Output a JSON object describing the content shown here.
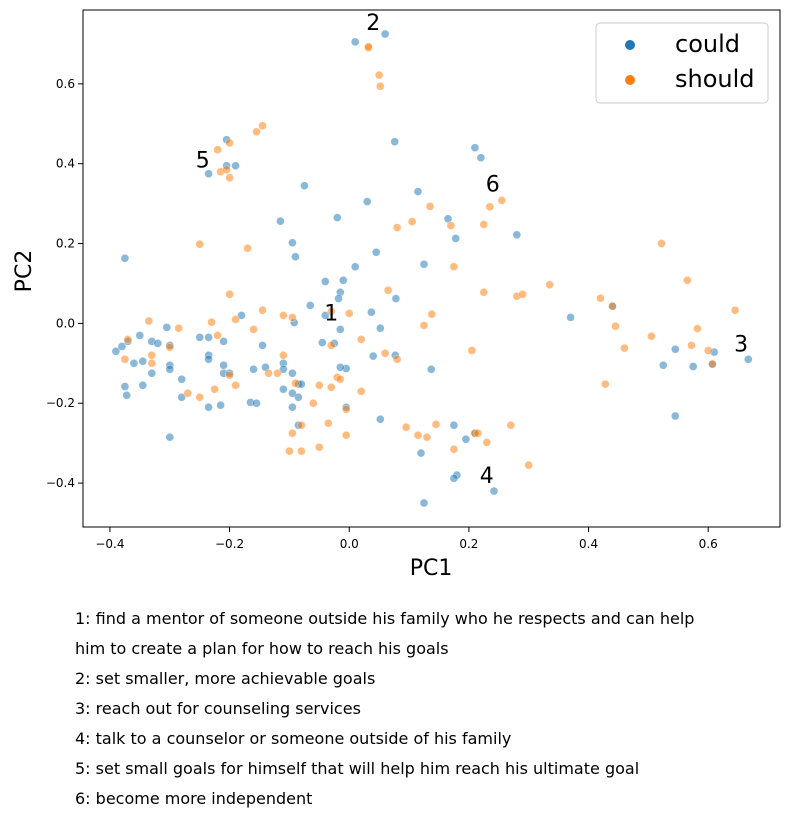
{
  "chart_data": {
    "type": "scatter",
    "xlabel": "PC1",
    "ylabel": "PC2",
    "xlim": [
      -0.445,
      0.72
    ],
    "ylim": [
      -0.51,
      0.785
    ],
    "xticks": [
      -0.4,
      -0.2,
      0.0,
      0.2,
      0.4,
      0.6
    ],
    "xtick_labels": [
      "−0.4",
      "−0.2",
      "0.0",
      "0.2",
      "0.4",
      "0.6"
    ],
    "yticks": [
      -0.4,
      -0.2,
      0.0,
      0.2,
      0.4,
      0.6
    ],
    "ytick_labels": [
      "−0.4",
      "−0.2",
      "0.0",
      "0.2",
      "0.4",
      "0.6"
    ],
    "grid": false,
    "legend_position": "top-right",
    "series": [
      {
        "name": "could",
        "color": "#1f77b4",
        "points": [
          [
            0.01,
            0.705
          ],
          [
            0.06,
            0.725
          ],
          [
            0.076,
            0.455
          ],
          [
            0.21,
            0.44
          ],
          [
            0.22,
            0.415
          ],
          [
            0.115,
            0.33
          ],
          [
            0.165,
            0.262
          ],
          [
            0.28,
            0.222
          ],
          [
            0.178,
            0.213
          ],
          [
            0.125,
            0.148
          ],
          [
            -0.075,
            0.345
          ],
          [
            0.03,
            0.305
          ],
          [
            -0.02,
            0.265
          ],
          [
            -0.115,
            0.256
          ],
          [
            -0.095,
            0.202
          ],
          [
            -0.09,
            0.167
          ],
          [
            0.045,
            0.178
          ],
          [
            0.01,
            0.142
          ],
          [
            -0.04,
            0.105
          ],
          [
            -0.01,
            0.108
          ],
          [
            -0.015,
            0.078
          ],
          [
            -0.018,
            0.062
          ],
          [
            -0.065,
            0.045
          ],
          [
            0.078,
            0.062
          ],
          [
            -0.092,
            0.002
          ],
          [
            -0.04,
            0.02
          ],
          [
            0.037,
            0.028
          ],
          [
            -0.015,
            -0.015
          ],
          [
            0.052,
            -0.012
          ],
          [
            -0.025,
            -0.05
          ],
          [
            -0.045,
            -0.048
          ],
          [
            0.04,
            -0.082
          ],
          [
            0.077,
            -0.08
          ],
          [
            0.137,
            -0.115
          ],
          [
            -0.005,
            -0.113
          ],
          [
            -0.015,
            -0.11
          ],
          [
            -0.005,
            -0.21
          ],
          [
            0.052,
            -0.24
          ],
          [
            -0.205,
            0.46
          ],
          [
            -0.205,
            0.395
          ],
          [
            -0.19,
            0.395
          ],
          [
            -0.235,
            0.375
          ],
          [
            -0.39,
            -0.07
          ],
          [
            -0.38,
            -0.058
          ],
          [
            -0.37,
            -0.045
          ],
          [
            -0.35,
            -0.03
          ],
          [
            -0.36,
            -0.1
          ],
          [
            -0.345,
            -0.095
          ],
          [
            -0.33,
            -0.045
          ],
          [
            -0.32,
            -0.05
          ],
          [
            -0.305,
            -0.01
          ],
          [
            -0.3,
            -0.055
          ],
          [
            -0.3,
            -0.105
          ],
          [
            -0.3,
            -0.115
          ],
          [
            -0.33,
            -0.125
          ],
          [
            -0.345,
            -0.155
          ],
          [
            -0.375,
            -0.158
          ],
          [
            -0.372,
            -0.18
          ],
          [
            -0.28,
            -0.14
          ],
          [
            -0.28,
            -0.185
          ],
          [
            -0.25,
            -0.035
          ],
          [
            -0.235,
            -0.08
          ],
          [
            -0.235,
            -0.09
          ],
          [
            -0.235,
            -0.035
          ],
          [
            -0.21,
            -0.045
          ],
          [
            -0.21,
            -0.105
          ],
          [
            -0.21,
            -0.125
          ],
          [
            -0.2,
            -0.125
          ],
          [
            -0.235,
            -0.21
          ],
          [
            -0.215,
            -0.205
          ],
          [
            -0.18,
            0.02
          ],
          [
            -0.16,
            -0.115
          ],
          [
            -0.145,
            -0.055
          ],
          [
            -0.14,
            -0.11
          ],
          [
            -0.11,
            -0.1
          ],
          [
            -0.11,
            -0.115
          ],
          [
            -0.11,
            -0.165
          ],
          [
            -0.095,
            -0.175
          ],
          [
            -0.095,
            -0.125
          ],
          [
            -0.095,
            -0.21
          ],
          [
            -0.085,
            -0.152
          ],
          [
            -0.08,
            -0.152
          ],
          [
            -0.085,
            -0.185
          ],
          [
            -0.085,
            -0.255
          ],
          [
            -0.165,
            -0.198
          ],
          [
            -0.155,
            -0.2
          ],
          [
            -0.3,
            -0.285
          ],
          [
            -0.375,
            0.163
          ],
          [
            0.12,
            -0.325
          ],
          [
            0.125,
            -0.45
          ],
          [
            0.175,
            -0.255
          ],
          [
            0.18,
            -0.38
          ],
          [
            0.175,
            -0.388
          ],
          [
            0.195,
            -0.29
          ],
          [
            0.21,
            -0.275
          ],
          [
            0.242,
            -0.42
          ],
          [
            0.37,
            0.015
          ],
          [
            0.525,
            -0.105
          ],
          [
            0.545,
            -0.065
          ],
          [
            0.545,
            -0.232
          ],
          [
            0.575,
            -0.108
          ],
          [
            0.61,
            -0.072
          ],
          [
            0.667,
            -0.09
          ],
          [
            0.44,
            0.043
          ],
          [
            0.607,
            -0.102
          ]
        ]
      },
      {
        "name": "should",
        "color": "#ff7f0e",
        "points": [
          [
            0.032,
            0.69
          ],
          [
            0.032,
            0.693
          ],
          [
            0.05,
            0.622
          ],
          [
            0.052,
            0.594
          ],
          [
            -0.155,
            0.48
          ],
          [
            -0.145,
            0.495
          ],
          [
            -0.22,
            0.435
          ],
          [
            -0.2,
            0.452
          ],
          [
            -0.215,
            0.38
          ],
          [
            -0.205,
            0.385
          ],
          [
            -0.2,
            0.365
          ],
          [
            -0.25,
            0.198
          ],
          [
            -0.17,
            0.188
          ],
          [
            -0.2,
            0.073
          ],
          [
            -0.145,
            0.033
          ],
          [
            -0.335,
            0.006
          ],
          [
            -0.285,
            -0.012
          ],
          [
            -0.37,
            -0.04
          ],
          [
            -0.33,
            -0.08
          ],
          [
            -0.33,
            -0.1
          ],
          [
            -0.375,
            -0.09
          ],
          [
            -0.3,
            -0.06
          ],
          [
            -0.23,
            0.003
          ],
          [
            -0.22,
            -0.03
          ],
          [
            -0.19,
            0.01
          ],
          [
            -0.16,
            -0.015
          ],
          [
            -0.11,
            0.02
          ],
          [
            -0.095,
            0.015
          ],
          [
            -0.2,
            -0.13
          ],
          [
            -0.19,
            -0.155
          ],
          [
            -0.225,
            -0.165
          ],
          [
            -0.27,
            -0.175
          ],
          [
            -0.25,
            -0.185
          ],
          [
            -0.135,
            -0.125
          ],
          [
            -0.12,
            -0.125
          ],
          [
            -0.11,
            -0.08
          ],
          [
            -0.09,
            -0.15
          ],
          [
            -0.03,
            -0.16
          ],
          [
            -0.05,
            -0.155
          ],
          [
            -0.06,
            -0.2
          ],
          [
            -0.08,
            -0.255
          ],
          [
            -0.095,
            -0.275
          ],
          [
            -0.1,
            -0.32
          ],
          [
            -0.08,
            -0.32
          ],
          [
            -0.05,
            -0.31
          ],
          [
            -0.035,
            -0.25
          ],
          [
            -0.005,
            -0.215
          ],
          [
            -0.005,
            -0.28
          ],
          [
            -0.02,
            -0.135
          ],
          [
            -0.015,
            -0.14
          ],
          [
            -0.03,
            0.03
          ],
          [
            0.0,
            0.025
          ],
          [
            -0.03,
            -0.055
          ],
          [
            0.02,
            -0.04
          ],
          [
            0.02,
            -0.17
          ],
          [
            0.06,
            -0.075
          ],
          [
            0.065,
            0.083
          ],
          [
            0.08,
            0.24
          ],
          [
            0.105,
            0.255
          ],
          [
            0.135,
            0.293
          ],
          [
            0.17,
            0.245
          ],
          [
            0.175,
            0.142
          ],
          [
            0.125,
            -0.005
          ],
          [
            0.138,
            0.023
          ],
          [
            0.08,
            -0.09
          ],
          [
            0.205,
            -0.068
          ],
          [
            0.225,
            0.078
          ],
          [
            0.225,
            0.248
          ],
          [
            0.235,
            0.292
          ],
          [
            0.255,
            0.308
          ],
          [
            0.28,
            0.068
          ],
          [
            0.29,
            0.073
          ],
          [
            0.335,
            0.097
          ],
          [
            0.095,
            -0.26
          ],
          [
            0.115,
            -0.28
          ],
          [
            0.13,
            -0.285
          ],
          [
            0.145,
            -0.253
          ],
          [
            0.175,
            -0.315
          ],
          [
            0.21,
            -0.275
          ],
          [
            0.215,
            -0.275
          ],
          [
            0.23,
            -0.298
          ],
          [
            0.27,
            -0.255
          ],
          [
            0.3,
            -0.355
          ],
          [
            0.42,
            0.063
          ],
          [
            0.44,
            0.043
          ],
          [
            0.445,
            -0.007
          ],
          [
            0.46,
            -0.062
          ],
          [
            0.428,
            -0.152
          ],
          [
            0.505,
            -0.032
          ],
          [
            0.522,
            0.2
          ],
          [
            0.565,
            0.108
          ],
          [
            0.572,
            -0.055
          ],
          [
            0.582,
            -0.013
          ],
          [
            0.6,
            -0.068
          ],
          [
            0.607,
            -0.102
          ],
          [
            0.645,
            0.033
          ]
        ]
      }
    ],
    "annotations": [
      {
        "label": "1",
        "x": -0.03,
        "y": 0.007
      },
      {
        "label": "2",
        "x": 0.04,
        "y": 0.735
      },
      {
        "label": "3",
        "x": 0.655,
        "y": -0.07
      },
      {
        "label": "4",
        "x": 0.23,
        "y": -0.4
      },
      {
        "label": "5",
        "x": -0.245,
        "y": 0.39
      },
      {
        "label": "6",
        "x": 0.24,
        "y": 0.33
      }
    ]
  },
  "notes": [
    "1: find a mentor of someone outside his family who he respects and can help",
    "him to create a plan for how to reach his goals",
    "2: set smaller, more achievable goals",
    "3: reach out for counseling services",
    "4: talk to a counselor or someone outside of his family",
    "5: set small goals for himself that will help him reach his ultimate goal",
    "6: become more independent"
  ]
}
